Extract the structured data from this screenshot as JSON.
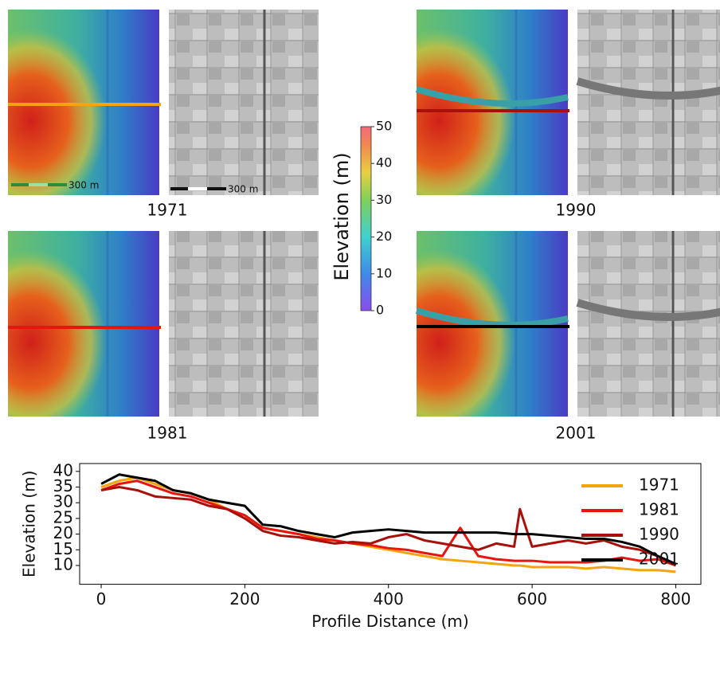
{
  "panels": [
    {
      "label": "1971"
    },
    {
      "label": "1990"
    },
    {
      "label": "1981"
    },
    {
      "label": "2001"
    }
  ],
  "scale_bar": "300 m",
  "chart_data": [
    {
      "type": "colorbar",
      "label": "Elevation (m)",
      "ylim": [
        0,
        50
      ],
      "yticks": [
        0,
        10,
        20,
        30,
        40,
        50
      ]
    },
    {
      "type": "line",
      "y_label": "Elevation (m)",
      "x_label": "Profile Distance (m)",
      "x": [
        0,
        25,
        50,
        75,
        100,
        125,
        150,
        175,
        200,
        225,
        250,
        275,
        300,
        325,
        350,
        375,
        400,
        425,
        450,
        475,
        500,
        525,
        550,
        575,
        583,
        600,
        625,
        650,
        675,
        700,
        725,
        750,
        775,
        800
      ],
      "series": [
        {
          "name": "1971",
          "color": "#f5a40f",
          "values": [
            35,
            37,
            38,
            36,
            34,
            33,
            31,
            28,
            26,
            22,
            21,
            20,
            19,
            18,
            17,
            16,
            15,
            14,
            13,
            12,
            11.5,
            11,
            10.5,
            10,
            10,
            9.5,
            9.5,
            9.5,
            9,
            9.5,
            9,
            8.5,
            8.5,
            8
          ]
        },
        {
          "name": "1981",
          "color": "#e8150e",
          "values": [
            34,
            36,
            37,
            35,
            33,
            32,
            30,
            28,
            26,
            22,
            21,
            20,
            18.5,
            18,
            17,
            16.5,
            15.5,
            15,
            14,
            13,
            22,
            13,
            12,
            11.5,
            11.5,
            11.5,
            11,
            11,
            11,
            11.5,
            12.5,
            11.5,
            12,
            10
          ]
        },
        {
          "name": "1990",
          "color": "#a8100c",
          "values": [
            34,
            35,
            34,
            32,
            31.5,
            31,
            29,
            28,
            25,
            21,
            19.5,
            19,
            18,
            17,
            17.5,
            17,
            19,
            20,
            18,
            17,
            16,
            15,
            17,
            16,
            28,
            16,
            17,
            18,
            17,
            18,
            16,
            15,
            13,
            10
          ]
        },
        {
          "name": "2001",
          "color": "#000000",
          "values": [
            36,
            39,
            38,
            37,
            34,
            33,
            31,
            30,
            29,
            23,
            22.5,
            21,
            20,
            19,
            20.5,
            21,
            21.5,
            21,
            20.5,
            20.5,
            20.5,
            20.5,
            20.5,
            20,
            20,
            20,
            19.5,
            19,
            18.5,
            18.5,
            17.5,
            16,
            13,
            10.5
          ]
        }
      ],
      "xlim": [
        -30,
        835
      ],
      "ylim": [
        4,
        42.5
      ],
      "xticks": [
        0,
        200,
        400,
        600,
        800
      ],
      "yticks": [
        10,
        15,
        20,
        25,
        30,
        35,
        40
      ],
      "legend": "upper right"
    }
  ]
}
